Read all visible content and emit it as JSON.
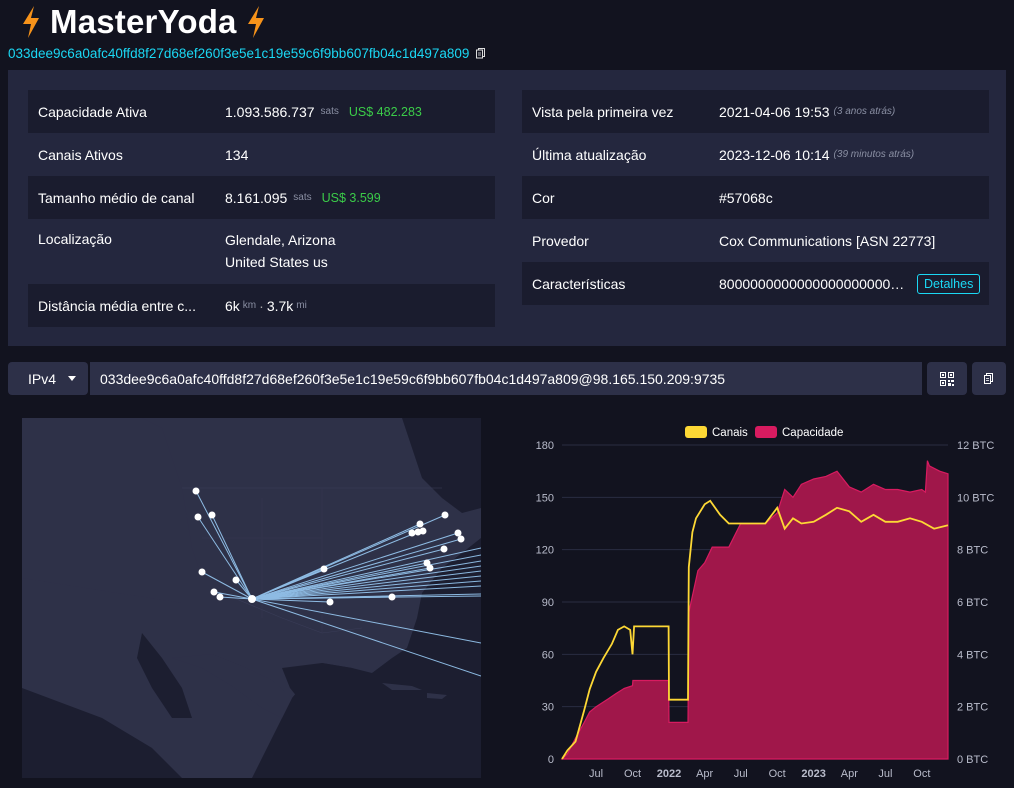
{
  "node": {
    "alias": "MasterYoda",
    "public_key": "033dee9c6a0afc40ffd8f27d68ef260f3e5e1c19e59c6f9bb607fb04c1d497a809"
  },
  "icons": {
    "title": "lightning-bolt-icon",
    "copy": "copy-icon",
    "qr": "qrcode-icon",
    "caret": "caret-down-icon"
  },
  "left_rows": {
    "capacity": {
      "label": "Capacidade Ativa",
      "value": "1.093.586.737",
      "unit": "sats",
      "usd": "US$ 482.283"
    },
    "channels": {
      "label": "Canais Ativos",
      "value": "134"
    },
    "avg_size": {
      "label": "Tamanho médio de canal",
      "value": "8.161.095",
      "unit": "sats",
      "usd": "US$ 3.599"
    },
    "location": {
      "label": "Localização",
      "city": "Glendale, Arizona",
      "country": "United States us"
    },
    "distance": {
      "label": "Distância média entre c...",
      "km": "6k",
      "km_unit": "km",
      "sep": "·",
      "mi": "3.7k",
      "mi_unit": "mi"
    }
  },
  "right_rows": {
    "first_seen": {
      "label": "Vista pela primeira vez",
      "value": "2021-04-06 19:53",
      "ago": "(3 anos atrás)"
    },
    "updated": {
      "label": "Última atualização",
      "value": "2023-12-06 10:14",
      "ago": "(39 minutos atrás)"
    },
    "color": {
      "label": "Cor",
      "value": "#57068c",
      "swatch": "#57068c"
    },
    "provider": {
      "label": "Provedor",
      "value": "Cox Communications [ASN 22773]"
    },
    "features": {
      "label": "Características",
      "value": "800000000000000000000000000000",
      "button": "Detalhes"
    }
  },
  "socket": {
    "network": "IPv4",
    "address": "033dee9c6a0afc40ffd8f27d68ef260f3e5e1c19e59c6f9bb607fb04c1d497a809@98.165.150.209:9735"
  },
  "colors": {
    "accent": "#1bd8f4",
    "usd": "#3bcc49",
    "channels_line": "#fdd835",
    "capacity_fill": "#a0174a",
    "capacity_line": "#d81b60",
    "bg": "#12131f",
    "panel": "#24273e",
    "bolt": "#f7931a"
  },
  "map": {
    "hub": "Glendale, Arizona"
  },
  "chart_data": {
    "type": "line",
    "legend": [
      "Canais",
      "Capacidade"
    ],
    "legend_position": "top",
    "x_ticks": [
      "Jul",
      "Oct",
      "2022",
      "Apr",
      "Jul",
      "Oct",
      "2023",
      "Apr",
      "Jul",
      "Oct"
    ],
    "left_axis": {
      "ticks": [
        "0",
        "30",
        "60",
        "90",
        "120",
        "150",
        "180"
      ],
      "range": [
        0,
        180
      ]
    },
    "right_axis": {
      "ticks": [
        "0 BTC",
        "2 BTC",
        "4 BTC",
        "6 BTC",
        "8 BTC",
        "10 BTC",
        "12 BTC"
      ],
      "range": [
        0,
        12
      ]
    },
    "series": [
      {
        "name": "Canais",
        "axis": "left",
        "x": [
          "2021-04-06",
          "2021-04-20",
          "2021-05-10",
          "2021-06-01",
          "2021-06-15",
          "2021-07-01",
          "2021-07-20",
          "2021-08-10",
          "2021-08-25",
          "2021-09-10",
          "2021-09-25",
          "2021-10-01",
          "2021-10-05",
          "2021-10-10",
          "2021-11-01",
          "2021-12-15",
          "2021-12-31",
          "2022-01-01",
          "2022-02-01",
          "2022-02-18",
          "2022-02-20",
          "2022-03-01",
          "2022-03-10",
          "2022-04-01",
          "2022-04-15",
          "2022-05-10",
          "2022-06-01",
          "2022-07-01",
          "2022-08-01",
          "2022-09-01",
          "2022-10-01",
          "2022-10-20",
          "2022-11-10",
          "2022-12-01",
          "2023-01-01",
          "2023-02-01",
          "2023-03-01",
          "2023-04-01",
          "2023-05-01",
          "2023-06-01",
          "2023-07-01",
          "2023-08-01",
          "2023-09-01",
          "2023-10-01",
          "2023-11-01",
          "2023-12-06"
        ],
        "values": [
          0,
          5,
          10,
          28,
          40,
          50,
          58,
          66,
          74,
          76,
          74,
          60,
          76,
          76,
          76,
          76,
          76,
          34,
          34,
          34,
          110,
          130,
          138,
          146,
          148,
          140,
          135,
          135,
          135,
          135,
          144,
          132,
          138,
          135,
          136,
          140,
          144,
          142,
          136,
          140,
          136,
          136,
          138,
          136,
          132,
          134
        ]
      },
      {
        "name": "Capacidade",
        "axis": "right",
        "unit": "BTC",
        "x": [
          "2021-04-06",
          "2021-04-20",
          "2021-05-10",
          "2021-06-01",
          "2021-06-15",
          "2021-07-01",
          "2021-08-01",
          "2021-08-20",
          "2021-09-10",
          "2021-10-01",
          "2021-10-02",
          "2021-11-01",
          "2021-12-31",
          "2022-01-01",
          "2022-02-18",
          "2022-02-20",
          "2022-03-15",
          "2022-04-01",
          "2022-04-20",
          "2022-05-20",
          "2022-06-01",
          "2022-07-01",
          "2022-08-01",
          "2022-09-01",
          "2022-10-01",
          "2022-10-20",
          "2022-11-10",
          "2022-12-01",
          "2023-01-01",
          "2023-02-01",
          "2023-03-01",
          "2023-04-01",
          "2023-05-01",
          "2023-06-01",
          "2023-07-01",
          "2023-08-01",
          "2023-09-01",
          "2023-10-01",
          "2023-10-10",
          "2023-10-15",
          "2023-10-20",
          "2023-11-15",
          "2023-12-06"
        ],
        "values": [
          0,
          0.2,
          0.8,
          1.4,
          1.8,
          2.0,
          2.3,
          2.5,
          2.7,
          2.8,
          3.0,
          3.0,
          3.0,
          1.4,
          1.4,
          5.6,
          7.2,
          7.5,
          8.1,
          8.1,
          8.1,
          9.0,
          9.0,
          9.0,
          9.4,
          10.3,
          10.0,
          10.5,
          10.7,
          10.8,
          11.0,
          10.4,
          10.2,
          10.5,
          10.3,
          10.3,
          10.2,
          10.3,
          10.2,
          11.4,
          11.2,
          11.0,
          10.9
        ]
      }
    ]
  }
}
